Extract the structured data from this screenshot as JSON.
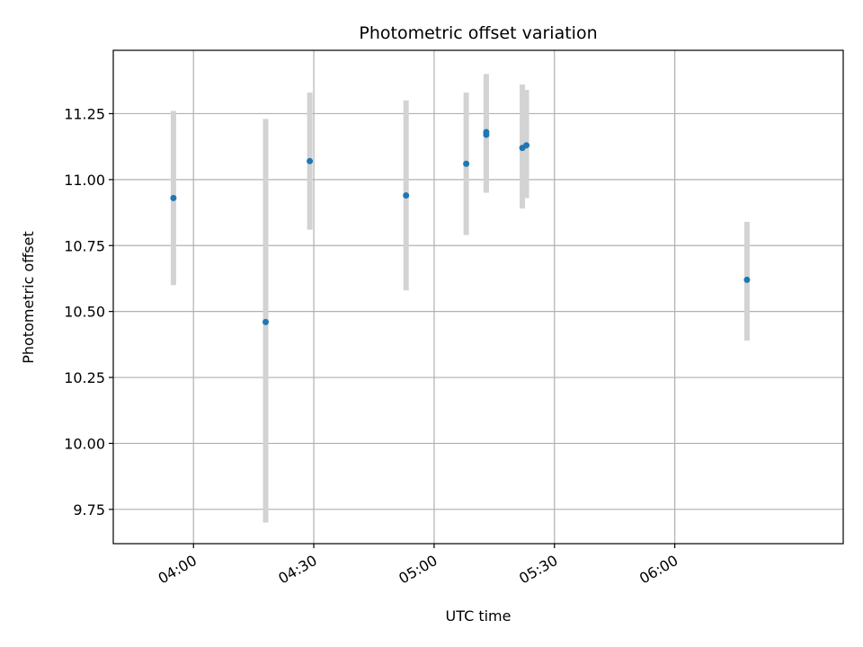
{
  "chart_data": {
    "type": "scatter",
    "title": "Photometric offset variation",
    "xlabel": "UTC time",
    "ylabel": "Photometric offset",
    "x_unit": "time (HH:MM, UTC)",
    "xlim": [
      "03:40",
      "06:42"
    ],
    "ylim": [
      9.62,
      11.49
    ],
    "x_ticks": [
      "04:00",
      "04:30",
      "05:00",
      "05:30",
      "06:00"
    ],
    "y_ticks": [
      9.75,
      10.0,
      10.25,
      10.5,
      10.75,
      11.0,
      11.25
    ],
    "y_tick_labels": [
      "9.75",
      "10.00",
      "10.25",
      "10.50",
      "10.75",
      "11.00",
      "11.25"
    ],
    "grid": true,
    "legend": "none",
    "marker_color": "#1f77b4",
    "errorbar_color": "#d3d3d3",
    "points": [
      {
        "x": "03:55",
        "y": 10.93,
        "yerr_low": 10.6,
        "yerr_high": 11.26
      },
      {
        "x": "04:18",
        "y": 10.46,
        "yerr_low": 9.7,
        "yerr_high": 11.23
      },
      {
        "x": "04:29",
        "y": 11.07,
        "yerr_low": 10.81,
        "yerr_high": 11.33
      },
      {
        "x": "04:53",
        "y": 10.94,
        "yerr_low": 10.58,
        "yerr_high": 11.3
      },
      {
        "x": "05:08",
        "y": 11.06,
        "yerr_low": 10.79,
        "yerr_high": 11.33
      },
      {
        "x": "05:13",
        "y": 11.17,
        "yerr_low": 10.95,
        "yerr_high": 11.39
      },
      {
        "x": "05:13",
        "y": 11.18,
        "yerr_low": 10.96,
        "yerr_high": 11.4
      },
      {
        "x": "05:22",
        "y": 11.12,
        "yerr_low": 10.89,
        "yerr_high": 11.36
      },
      {
        "x": "05:23",
        "y": 11.13,
        "yerr_low": 10.93,
        "yerr_high": 11.34
      },
      {
        "x": "06:18",
        "y": 10.62,
        "yerr_low": 10.39,
        "yerr_high": 10.84
      }
    ]
  }
}
